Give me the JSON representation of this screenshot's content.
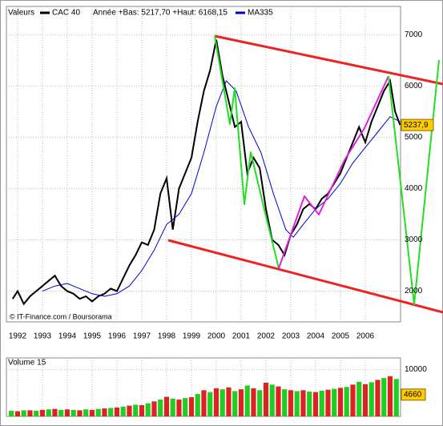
{
  "chart_data": [
    {
      "type": "line",
      "header": "Valeurs",
      "subtitle": "Année +Bas: 5217,70 +Haut: 6168,15",
      "source": "© IT-Finance.com / Boursorama",
      "x": [
        1992.3,
        1992.5,
        1992.75,
        1993,
        1993.25,
        1993.5,
        1993.75,
        1994,
        1994.25,
        1994.5,
        1994.75,
        1995,
        1995.25,
        1995.5,
        1995.75,
        1996,
        1996.25,
        1996.5,
        1996.75,
        1997,
        1997.25,
        1997.5,
        1997.75,
        1998,
        1998.25,
        1998.5,
        1998.75,
        1999,
        1999.25,
        1999.5,
        1999.75,
        2000,
        2000.25,
        2000.5,
        2000.75,
        2001,
        2001.25,
        2001.5,
        2001.75,
        2002,
        2002.25,
        2002.5,
        2002.75,
        2003,
        2003.25,
        2003.5,
        2003.75,
        2004,
        2004.25,
        2004.5,
        2004.75,
        2005,
        2005.25,
        2005.5,
        2005.75,
        2006,
        2006.25,
        2006.5,
        2006.75,
        2007,
        2007.25,
        2007.5,
        2007.7,
        2007.9
      ],
      "series": [
        {
          "name": "CAC 40",
          "color": "#000000",
          "values": [
            1850,
            2000,
            1750,
            1900,
            2000,
            2100,
            2200,
            2300,
            2100,
            2000,
            1950,
            1850,
            1900,
            1800,
            1900,
            1950,
            2050,
            2000,
            2250,
            2500,
            2700,
            2950,
            2900,
            3200,
            3900,
            4200,
            3200,
            4000,
            4300,
            4600,
            5300,
            5900,
            6300,
            6900,
            6200,
            5700,
            5200,
            5300,
            4300,
            4600,
            4400,
            3600,
            3000,
            2900,
            2700,
            3100,
            3300,
            3600,
            3700,
            3600,
            3800,
            3900,
            4100,
            4300,
            4600,
            4900,
            5200,
            4900,
            5300,
            5600,
            5900,
            6100,
            5500,
            5238
          ]
        },
        {
          "name": "MA335",
          "color": "#0000cc",
          "x": [
            1993.5,
            1994,
            1994.5,
            1995,
            1995.5,
            1996,
            1996.5,
            1997,
            1997.5,
            1998,
            1998.5,
            1999,
            1999.5,
            2000,
            2000.5,
            2000.9,
            2001.3,
            2001.8,
            2002.3,
            2002.8,
            2003.3,
            2003.6,
            2004,
            2004.5,
            2005,
            2005.5,
            2006,
            2006.5,
            2007,
            2007.5,
            2007.9
          ],
          "values": [
            2000,
            2100,
            2150,
            2050,
            1950,
            1900,
            1950,
            2100,
            2400,
            2800,
            3300,
            3500,
            3900,
            4700,
            5600,
            6100,
            5900,
            5200,
            4700,
            3900,
            3200,
            3050,
            3300,
            3600,
            3800,
            4100,
            4500,
            4800,
            5100,
            5400,
            5300
          ]
        }
      ],
      "last": {
        "value": 5237.9,
        "label": "5237,9"
      },
      "xlim": [
        1992.05,
        2007.92
      ],
      "xticks": [
        {
          "value": 1992.5,
          "label": "1992"
        },
        {
          "value": 1993.5,
          "label": "1993"
        },
        {
          "value": 1994.5,
          "label": "1994"
        },
        {
          "value": 1995.5,
          "label": "1995"
        },
        {
          "value": 1996.5,
          "label": "1996"
        },
        {
          "value": 1997.5,
          "label": "1997"
        },
        {
          "value": 1998.5,
          "label": "1998"
        },
        {
          "value": 1999.5,
          "label": "1999"
        },
        {
          "value": 2000.5,
          "label": "2000"
        },
        {
          "value": 2001.5,
          "label": "2001"
        },
        {
          "value": 2002.5,
          "label": "2002"
        },
        {
          "value": 2003.5,
          "label": "2003"
        },
        {
          "value": 2004.5,
          "label": "2004"
        },
        {
          "value": 2005.5,
          "label": "2005"
        },
        {
          "value": 2006.5,
          "label": "2006"
        }
      ],
      "ylim": [
        1400,
        7550
      ],
      "yticks": [
        2000,
        3000,
        4000,
        5000,
        6000,
        7000
      ],
      "grid": true
    },
    {
      "type": "bar",
      "title": "Volume 15",
      "colors": [
        "#22cc22",
        "#dd2222"
      ],
      "x": [
        1992.25,
        1992.5,
        1992.75,
        1993,
        1993.25,
        1993.5,
        1993.75,
        1994,
        1994.25,
        1994.5,
        1994.75,
        1995,
        1995.25,
        1995.5,
        1995.75,
        1996,
        1996.25,
        1996.5,
        1996.75,
        1997,
        1997.25,
        1997.5,
        1997.75,
        1998,
        1998.25,
        1998.5,
        1998.75,
        1999,
        1999.25,
        1999.5,
        1999.75,
        2000,
        2000.25,
        2000.5,
        2000.75,
        2001,
        2001.25,
        2001.5,
        2001.75,
        2002,
        2002.25,
        2002.5,
        2002.75,
        2003,
        2003.25,
        2003.5,
        2003.75,
        2004,
        2004.25,
        2004.5,
        2004.75,
        2005,
        2005.25,
        2005.5,
        2005.75,
        2006,
        2006.25,
        2006.5,
        2006.75,
        2007,
        2007.25,
        2007.5,
        2007.75
      ],
      "values": [
        1200,
        1100,
        1300,
        1300,
        1200,
        1400,
        1500,
        1600,
        1400,
        1500,
        1400,
        1300,
        1500,
        1400,
        1600,
        1700,
        1800,
        1900,
        2100,
        2300,
        2500,
        2400,
        2800,
        3200,
        3600,
        4200,
        3800,
        3600,
        3900,
        4100,
        4800,
        5600,
        5200,
        6000,
        5800,
        6200,
        5400,
        5800,
        6600,
        6000,
        5600,
        7200,
        6800,
        6400,
        5800,
        5600,
        5400,
        5600,
        5300,
        5200,
        5500,
        5700,
        5900,
        6100,
        6300,
        6800,
        7400,
        6900,
        7300,
        7800,
        8200,
        8600,
        8000
      ],
      "last": 4660,
      "xlim": [
        1992.05,
        2007.92
      ],
      "ylim": [
        0,
        12500
      ],
      "yticks": [
        10000
      ],
      "grid": true
    }
  ]
}
